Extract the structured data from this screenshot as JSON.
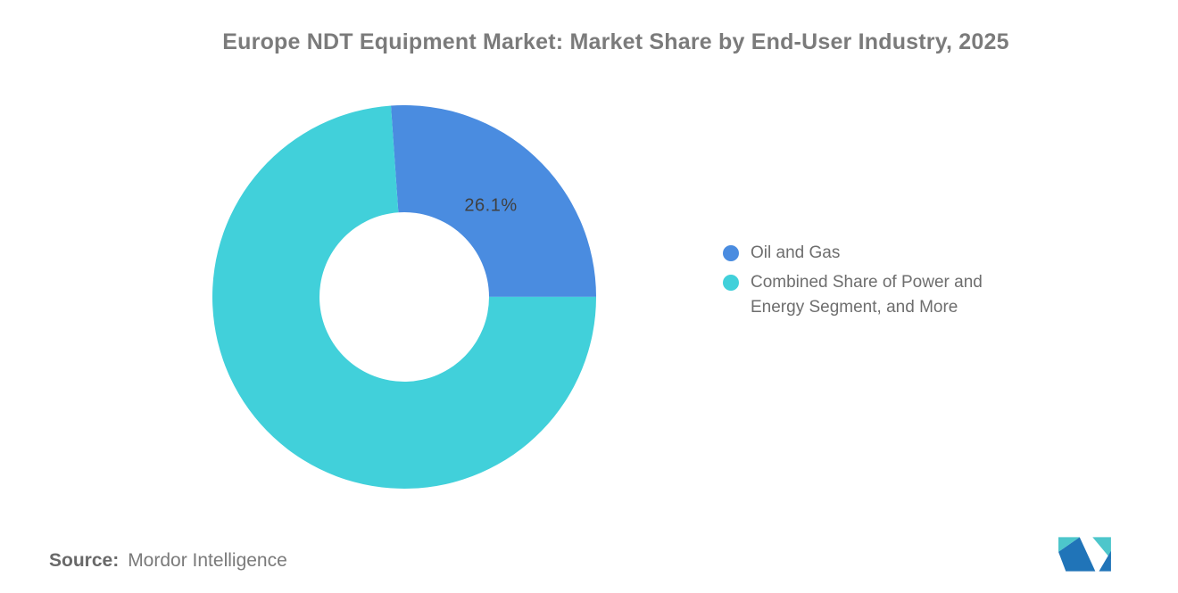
{
  "header": {
    "title": "Europe NDT Equipment Market: Market Share by End-User Industry, 2025"
  },
  "chart_data": {
    "type": "pie",
    "subtype": "donut",
    "title": "Europe NDT Equipment Market: Market Share by End-User Industry, 2025",
    "categories": [
      "Oil and Gas",
      "Combined Share of Power and Energy Segment, and More"
    ],
    "values": [
      26.1,
      73.9
    ],
    "unit": "%",
    "series": [
      {
        "name": "Oil and Gas",
        "value": 26.1,
        "color": "#4a8ce0",
        "data_label": "26.1%"
      },
      {
        "name": "Combined Share of Power and Energy Segment, and More",
        "value": 73.9,
        "color": "#41d0da",
        "data_label": ""
      }
    ],
    "start_angle_deg": -4,
    "inner_radius_ratio": 0.442,
    "legend_position": "right",
    "data_label_color": "#404040",
    "background": "#ffffff"
  },
  "legend": {
    "items": [
      {
        "label": "Oil and Gas",
        "color": "#4a8ce0"
      },
      {
        "label": "Combined Share of Power and Energy Segment, and More",
        "color": "#41d0da"
      }
    ]
  },
  "footer": {
    "source_label": "Source:",
    "source_value": "Mordor Intelligence"
  },
  "logo": {
    "name": "mordor-intelligence-logo",
    "color_blue": "#2074b8",
    "color_teal": "#4dc6cb"
  }
}
